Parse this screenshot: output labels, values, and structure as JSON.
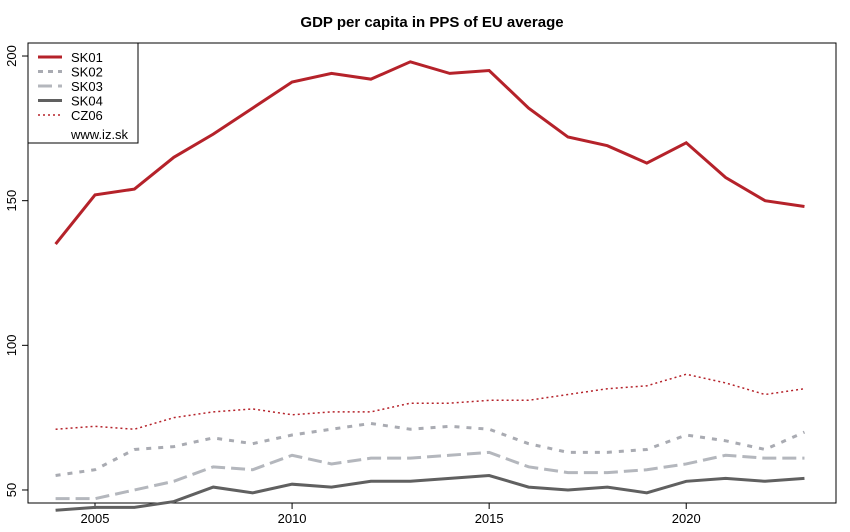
{
  "chart_data": {
    "type": "line",
    "title": "GDP per capita in PPS of EU average",
    "xlabel": "",
    "ylabel": "",
    "xlim": [
      2003.3,
      2023.8
    ],
    "ylim": [
      45.5,
      204.5
    ],
    "xticks": [
      2005,
      2010,
      2015,
      2020
    ],
    "yticks": [
      50,
      100,
      150,
      200
    ],
    "grid": false,
    "legend_position": "top-left",
    "legend_note": "www.iz.sk",
    "x": [
      2004,
      2005,
      2006,
      2007,
      2008,
      2009,
      2010,
      2011,
      2012,
      2013,
      2014,
      2015,
      2016,
      2017,
      2018,
      2019,
      2020,
      2021,
      2022,
      2023
    ],
    "series": [
      {
        "name": "SK01",
        "color": "#b5222a",
        "style": "solid",
        "width": 3,
        "values": [
          135,
          152,
          154,
          165,
          173,
          182,
          191,
          194,
          192,
          198,
          194,
          195,
          182,
          172,
          169,
          163,
          170,
          158,
          150,
          148
        ]
      },
      {
        "name": "SK02",
        "color": "#a9abb2",
        "style": "dotted",
        "width": 3,
        "values": [
          55,
          57,
          64,
          65,
          68,
          66,
          69,
          71,
          73,
          71,
          72,
          71,
          66,
          63,
          63,
          64,
          69,
          67,
          64,
          70
        ]
      },
      {
        "name": "SK03",
        "color": "#b4b7bd",
        "style": "dashed",
        "width": 3,
        "values": [
          47,
          47,
          50,
          53,
          58,
          57,
          62,
          59,
          61,
          61,
          62,
          63,
          58,
          56,
          56,
          57,
          59,
          62,
          61,
          61
        ]
      },
      {
        "name": "SK04",
        "color": "#606060",
        "style": "solid",
        "width": 3,
        "values": [
          43,
          44,
          44,
          46,
          51,
          49,
          52,
          51,
          53,
          53,
          54,
          55,
          51,
          50,
          51,
          49,
          53,
          54,
          53,
          54
        ]
      },
      {
        "name": "CZ06",
        "color": "#b5222a",
        "style": "fine-dotted",
        "width": 1.5,
        "values": [
          71,
          72,
          71,
          75,
          77,
          78,
          76,
          77,
          77,
          80,
          80,
          81,
          81,
          83,
          85,
          86,
          90,
          87,
          83,
          85
        ]
      }
    ]
  }
}
